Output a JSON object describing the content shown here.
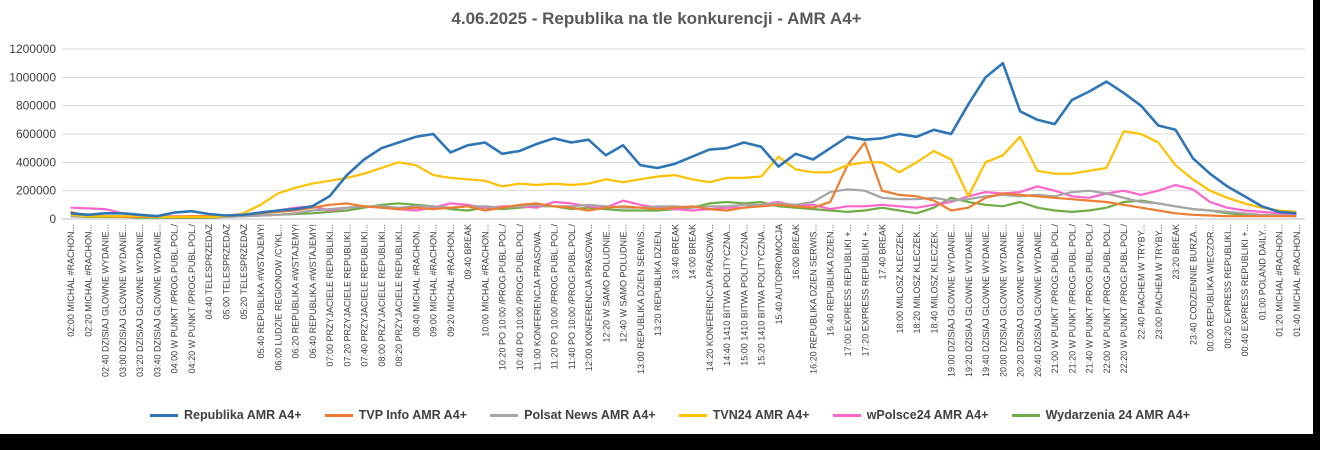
{
  "chart_data": {
    "type": "line",
    "title": "4.06.2025 - Republika na tle konkurencji -  AMR A4+",
    "ylim": [
      0,
      1200000
    ],
    "y_ticks": [
      "0",
      "200000",
      "400000",
      "600000",
      "800000",
      "1000000",
      "1200000"
    ],
    "grid": true,
    "legend_position": "bottom",
    "x_labels": [
      "02:00 MICHAL #RACHON...",
      "02:20 MICHAL #RACHON...",
      "02:40 DZISIAJ GLOWNE WYDANIE...",
      "03:00 DZISIAJ GLOWNE WYDANIE...",
      "03:20 DZISIAJ GLOWNE WYDANIE...",
      "03:40 DZISIAJ GLOWNE WYDANIE...",
      "04:00 W PUNKT /PROG.PUBL.POL./",
      "04:20 W PUNKT /PROG.PUBL.POL./",
      "04:40 TELESPRZEDAZ",
      "05:00 TELESPRZEDAZ",
      "05:20 TELESPRZEDAZ",
      "05:40 REPUBLIKA #WSTAJEMY!",
      "06:00 LUDZIE REGIONOW /CYKL...",
      "06:20 REPUBLIKA #WSTAJEMY!",
      "06:40 REPUBLIKA #WSTAJEMY!",
      "07:00 PRZYJACIELE REPUBLIKI...",
      "07:20 PRZYJACIELE REPUBLIKI...",
      "07:40 PRZYJACIELE REPUBLIKI...",
      "08:00 PRZYJACIELE REPUBLIKI...",
      "08:20 PRZYJACIELE REPUBLIKI...",
      "08:40 MICHAL #RACHON...",
      "09:00 MICHAL #RACHON...",
      "09:20 MICHAL #RACHON...",
      "09:40 BREAK",
      "10:00 MICHAL #RACHON...",
      "10:20 PO 10:00 /PROG.PUBL.POL./",
      "10:40 PO 10:00 /PROG.PUBL.POL./",
      "11:00 KONFERENCJA PRASOWA...",
      "11:20 PO 10:00 /PROG.PUBL.POL./",
      "11:40 PO 10:00 /PROG.PUBL.POL./",
      "12:00 KONFERENCJA PRASOWA...",
      "12:20 W SAMO POLUDNIE...",
      "12:40 W SAMO POLUDNIE...",
      "13:00 REPUBLIKA DZIEN SERWIS...",
      "13:20 REPUBLIKA DZIEN...",
      "13:40 BREAK",
      "14:00 BREAK",
      "14:20 KONFERENCJA PRASOWA...",
      "14:40 1410 BITWA POLITYCZNA...",
      "15:00 1410 BITWA POLITYCZNA...",
      "15:20 1410 BITWA POLITYCZNA...",
      "15:40 AUTOPROMOCJA",
      "16:00 BREAK",
      "16:20 REPUBLIKA DZIEN SERWIS...",
      "16:40 REPUBLIKA DZIEN...",
      "17:00 EXPRESS REPUBLIKI +...",
      "17:20 EXPRESS REPUBLIKI +...",
      "17:40 BREAK",
      "18:00 MILOSZ KLECZEK...",
      "18:20 MILOSZ KLECZEK...",
      "18:40 MILOSZ KLECZEK...",
      "19:00 DZISIAJ GLOWNE WYDANIE...",
      "19:20 DZISIAJ GLOWNE WYDANIE...",
      "19:40 DZISIAJ GLOWNE WYDANIE...",
      "20:00 DZISIAJ GLOWNE WYDANIE...",
      "20:20 DZISIAJ GLOWNE WYDANIE...",
      "20:40 DZISIAJ GLOWNE WYDANIE...",
      "21:00 W PUNKT /PROG.PUBL.POL./",
      "21:20 W PUNKT /PROG.PUBL.POL./",
      "21:40 W PUNKT /PROG.PUBL.POL./",
      "22:00 W PUNKT /PROG.PUBL.POL./",
      "22:20 W PUNKT /PROG.PUBL.POL./",
      "22:40 PIACHEM W TRYBY...",
      "23:00 PIACHEM W TRYBY...",
      "23:20 BREAK",
      "23:40 CODZIENNIE BURZA...",
      "00:00 REPUBLIKA WIECZOR...",
      "00:20 EXPRESS REPUBLIKI...",
      "00:40 EXPRESS REPUBLIKI +...",
      "01:00 POLAND DAILY...",
      "01:20 MICHAL #RACHON...",
      "01:40 MICHAL #RACHON..."
    ],
    "series": [
      {
        "name": "Republika AMR A4+",
        "color": "#2e75b6",
        "values": [
          40000,
          30000,
          40000,
          40000,
          30000,
          20000,
          45000,
          55000,
          35000,
          25000,
          30000,
          45000,
          60000,
          70000,
          90000,
          160000,
          310000,
          420000,
          500000,
          540000,
          580000,
          600000,
          470000,
          520000,
          540000,
          460000,
          480000,
          530000,
          570000,
          540000,
          560000,
          450000,
          520000,
          380000,
          360000,
          390000,
          440000,
          490000,
          500000,
          540000,
          510000,
          370000,
          460000,
          420000,
          500000,
          580000,
          560000,
          570000,
          600000,
          580000,
          630000,
          600000,
          810000,
          1000000,
          1100000,
          760000,
          700000,
          670000,
          840000,
          900000,
          970000,
          890000,
          800000,
          660000,
          630000,
          430000,
          320000,
          230000,
          160000,
          90000,
          50000,
          40000
        ]
      },
      {
        "name": "TVP Info AMR A4+",
        "color": "#ed7d31",
        "values": [
          50000,
          20000,
          20000,
          15000,
          15000,
          15000,
          15000,
          20000,
          20000,
          20000,
          30000,
          40000,
          50000,
          60000,
          80000,
          100000,
          110000,
          90000,
          80000,
          70000,
          80000,
          70000,
          80000,
          90000,
          60000,
          80000,
          100000,
          110000,
          90000,
          80000,
          60000,
          80000,
          90000,
          80000,
          70000,
          80000,
          90000,
          70000,
          60000,
          80000,
          90000,
          100000,
          90000,
          80000,
          120000,
          380000,
          540000,
          200000,
          170000,
          160000,
          130000,
          60000,
          80000,
          150000,
          180000,
          170000,
          160000,
          150000,
          140000,
          130000,
          120000,
          100000,
          80000,
          60000,
          40000,
          30000,
          25000,
          20000,
          20000,
          20000,
          20000,
          20000
        ]
      },
      {
        "name": "Polsat News AMR A4+",
        "color": "#a5a5a5",
        "values": [
          20000,
          20000,
          20000,
          20000,
          15000,
          15000,
          15000,
          15000,
          15000,
          15000,
          20000,
          25000,
          30000,
          40000,
          60000,
          70000,
          80000,
          90000,
          90000,
          80000,
          90000,
          90000,
          80000,
          90000,
          90000,
          80000,
          90000,
          100000,
          90000,
          90000,
          100000,
          90000,
          80000,
          80000,
          90000,
          90000,
          80000,
          90000,
          90000,
          100000,
          100000,
          110000,
          100000,
          120000,
          190000,
          210000,
          200000,
          150000,
          140000,
          140000,
          150000,
          130000,
          140000,
          160000,
          170000,
          160000,
          170000,
          160000,
          190000,
          200000,
          180000,
          150000,
          120000,
          110000,
          90000,
          70000,
          60000,
          50000,
          40000,
          30000,
          25000,
          20000
        ]
      },
      {
        "name": "TVN24 AMR A4+",
        "color": "#ffc000",
        "values": [
          30000,
          20000,
          20000,
          20000,
          20000,
          15000,
          15000,
          15000,
          15000,
          20000,
          40000,
          100000,
          180000,
          220000,
          250000,
          270000,
          290000,
          320000,
          360000,
          400000,
          380000,
          310000,
          290000,
          280000,
          270000,
          230000,
          250000,
          240000,
          250000,
          240000,
          250000,
          280000,
          260000,
          280000,
          300000,
          310000,
          280000,
          260000,
          290000,
          290000,
          300000,
          440000,
          350000,
          330000,
          330000,
          380000,
          400000,
          400000,
          330000,
          400000,
          480000,
          420000,
          160000,
          400000,
          450000,
          580000,
          340000,
          320000,
          320000,
          340000,
          360000,
          620000,
          600000,
          540000,
          380000,
          280000,
          200000,
          150000,
          110000,
          80000,
          60000,
          50000
        ]
      },
      {
        "name": "wPolsce24 AMR A4+",
        "color": "#ff66cc",
        "values": [
          80000,
          75000,
          70000,
          40000,
          30000,
          20000,
          20000,
          20000,
          20000,
          20000,
          30000,
          40000,
          60000,
          80000,
          90000,
          60000,
          80000,
          90000,
          80000,
          70000,
          60000,
          80000,
          110000,
          100000,
          80000,
          90000,
          90000,
          80000,
          120000,
          110000,
          90000,
          80000,
          130000,
          100000,
          80000,
          70000,
          60000,
          70000,
          80000,
          80000,
          100000,
          120000,
          90000,
          100000,
          70000,
          90000,
          90000,
          100000,
          90000,
          80000,
          100000,
          120000,
          160000,
          190000,
          180000,
          190000,
          230000,
          200000,
          160000,
          150000,
          180000,
          200000,
          170000,
          200000,
          240000,
          210000,
          120000,
          80000,
          60000,
          50000,
          40000,
          35000
        ]
      },
      {
        "name": "Wydarzenia 24  AMR A4+",
        "color": "#70ad47",
        "values": [
          20000,
          15000,
          15000,
          15000,
          10000,
          10000,
          10000,
          10000,
          10000,
          15000,
          20000,
          25000,
          30000,
          35000,
          40000,
          50000,
          60000,
          80000,
          100000,
          110000,
          100000,
          90000,
          70000,
          60000,
          80000,
          70000,
          80000,
          90000,
          90000,
          70000,
          80000,
          70000,
          60000,
          60000,
          60000,
          70000,
          80000,
          110000,
          120000,
          110000,
          120000,
          90000,
          80000,
          70000,
          60000,
          50000,
          60000,
          80000,
          60000,
          40000,
          80000,
          150000,
          120000,
          100000,
          90000,
          120000,
          80000,
          60000,
          50000,
          60000,
          80000,
          120000,
          130000,
          110000,
          90000,
          70000,
          60000,
          40000,
          30000,
          25000,
          25000,
          20000
        ]
      }
    ]
  }
}
